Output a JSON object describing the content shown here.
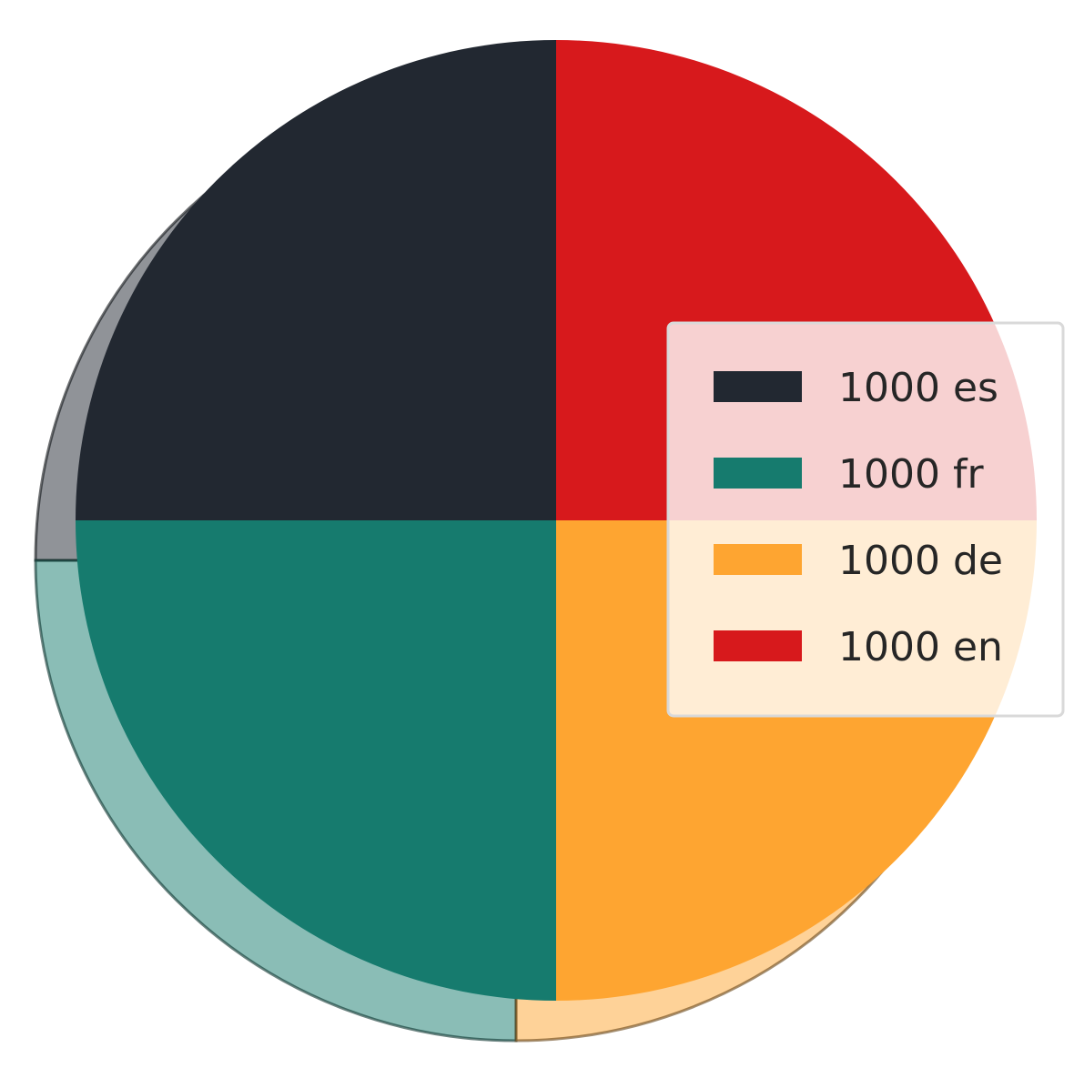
{
  "chart_data": {
    "type": "pie",
    "title": "",
    "slices": [
      {
        "label": "1000 es",
        "value": 1000,
        "color": "#222831"
      },
      {
        "label": "1000 fr",
        "value": 1000,
        "color": "#167b6e"
      },
      {
        "label": "1000 de",
        "value": 1000,
        "color": "#fea531"
      },
      {
        "label": "1000 en",
        "value": 1000,
        "color": "#d7191c"
      }
    ],
    "start_angle_deg": 90,
    "direction": "counterclockwise",
    "shadow": true,
    "legend": {
      "placement": "right",
      "entries": [
        "1000 es",
        "1000 fr",
        "1000 de",
        "1000 en"
      ]
    }
  }
}
